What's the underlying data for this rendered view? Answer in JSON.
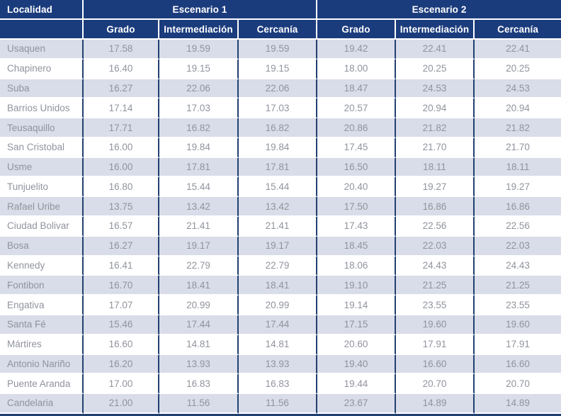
{
  "table": {
    "columns": {
      "localidad_label": "Localidad",
      "group1_label": "Escenario 1",
      "group2_label": "Escenario 2",
      "sub_labels": [
        "Grado",
        "Intermediación",
        "Cercanía"
      ]
    },
    "rows": [
      {
        "localidad": "Usaquen",
        "values": [
          "17.58",
          "19.59",
          "19.59",
          "19.42",
          "22.41",
          "22.41"
        ]
      },
      {
        "localidad": "Chapinero",
        "values": [
          "16.40",
          "19.15",
          "19.15",
          "18.00",
          "20.25",
          "20.25"
        ]
      },
      {
        "localidad": "Suba",
        "values": [
          "16.27",
          "22.06",
          "22.06",
          "18.47",
          "24.53",
          "24.53"
        ]
      },
      {
        "localidad": "Barrios Unidos",
        "values": [
          "17.14",
          "17.03",
          "17.03",
          "20.57",
          "20.94",
          "20.94"
        ]
      },
      {
        "localidad": "Teusaquillo",
        "values": [
          "17.71",
          "16.82",
          "16.82",
          "20.86",
          "21.82",
          "21.82"
        ]
      },
      {
        "localidad": "San Cristobal",
        "values": [
          "16.00",
          "19.84",
          "19.84",
          "17.45",
          "21.70",
          "21.70"
        ]
      },
      {
        "localidad": "Usme",
        "values": [
          "16.00",
          "17.81",
          "17.81",
          "16.50",
          "18.11",
          "18.11"
        ]
      },
      {
        "localidad": "Tunjuelito",
        "values": [
          "16.80",
          "15.44",
          "15.44",
          "20.40",
          "19.27",
          "19.27"
        ]
      },
      {
        "localidad": "Rafael Uribe",
        "values": [
          "13.75",
          "13.42",
          "13.42",
          "17.50",
          "16.86",
          "16.86"
        ]
      },
      {
        "localidad": "Ciudad Bolivar",
        "values": [
          "16.57",
          "21.41",
          "21.41",
          "17.43",
          "22.56",
          "22.56"
        ]
      },
      {
        "localidad": "Bosa",
        "values": [
          "16.27",
          "19.17",
          "19.17",
          "18.45",
          "22.03",
          "22.03"
        ]
      },
      {
        "localidad": "Kennedy",
        "values": [
          "16.41",
          "22.79",
          "22.79",
          "18.06",
          "24.43",
          "24.43"
        ]
      },
      {
        "localidad": "Fontibon",
        "values": [
          "16.70",
          "18.41",
          "18.41",
          "19.10",
          "21.25",
          "21.25"
        ]
      },
      {
        "localidad": "Engativa",
        "values": [
          "17.07",
          "20.99",
          "20.99",
          "19.14",
          "23.55",
          "23.55"
        ]
      },
      {
        "localidad": "Santa Fé",
        "values": [
          "15.46",
          "17.44",
          "17.44",
          "17.15",
          "19.60",
          "19.60"
        ]
      },
      {
        "localidad": "Mártires",
        "values": [
          "16.60",
          "14.81",
          "14.81",
          "20.60",
          "17.91",
          "17.91"
        ]
      },
      {
        "localidad": "Antonio Nariño",
        "values": [
          "16.20",
          "13.93",
          "13.93",
          "19.40",
          "16.60",
          "16.60"
        ]
      },
      {
        "localidad": "Puente Aranda",
        "values": [
          "17.00",
          "16.83",
          "16.83",
          "19.44",
          "20.70",
          "20.70"
        ]
      },
      {
        "localidad": "Candelaria",
        "values": [
          "21.00",
          "11.56",
          "11.56",
          "23.67",
          "14.89",
          "14.89"
        ]
      }
    ]
  },
  "colors": {
    "header_bg": "#1b3c7c",
    "grid_line": "#214070",
    "row_alt_bg": "#d9dce9",
    "row_bg": "#ffffff",
    "text_grey": "#90949d",
    "header_text": "#ffffff"
  }
}
